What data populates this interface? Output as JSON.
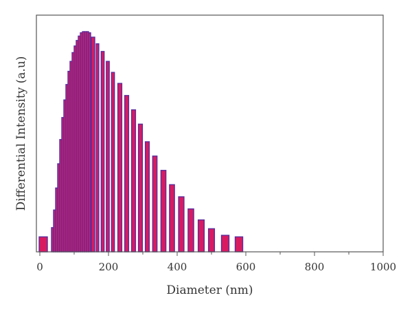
{
  "chart_data": {
    "type": "bar",
    "title": "",
    "xlabel": "Diameter (nm)",
    "ylabel": "Differential Intensity (a.u)",
    "xlim": [
      -10,
      1000
    ],
    "xticks": [
      0,
      200,
      400,
      600,
      800,
      1000
    ],
    "ylim": [
      0,
      100
    ],
    "grid": false,
    "legend": "none",
    "colors": {
      "bar_fill": "#d81b60",
      "bar_edge": "#5c2b9c",
      "axis": "#555555"
    },
    "x": [
      10,
      37,
      43,
      49,
      55,
      61,
      67,
      73,
      79,
      85,
      91,
      97,
      103,
      109,
      115,
      121,
      127,
      133,
      139,
      145,
      155,
      168,
      183,
      198,
      213,
      233,
      253,
      273,
      293,
      313,
      335,
      360,
      385,
      412,
      440,
      470,
      500,
      540,
      580
    ],
    "values": [
      6.8,
      11,
      19,
      29,
      40,
      51,
      61,
      69,
      76,
      82,
      86.5,
      90.5,
      93.5,
      96,
      98,
      99.5,
      100,
      100,
      100,
      99.5,
      97.5,
      94.5,
      91,
      86.5,
      81.5,
      76.5,
      71,
      64.5,
      58,
      50,
      43.5,
      37,
      30.5,
      25,
      19.5,
      14.5,
      10.5,
      7.5,
      6.8
    ]
  }
}
